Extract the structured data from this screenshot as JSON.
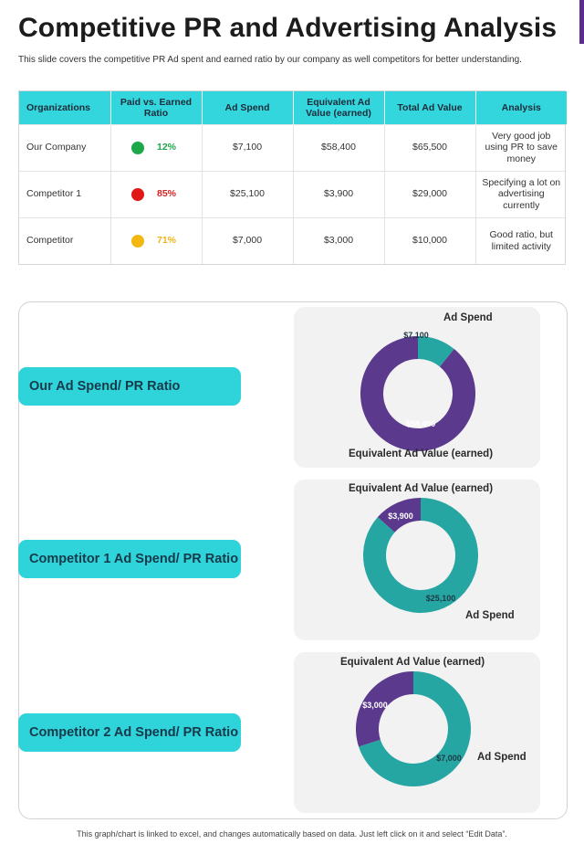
{
  "title": "Competitive PR and Advertising Analysis",
  "subtitle": "This slide covers the competitive PR Ad spent and earned ratio by our company as well competitors for better understanding.",
  "table": {
    "headers": [
      "Organizations",
      "Paid vs. Earned Ratio",
      "Ad Spend",
      "Equivalent Ad Value (earned)",
      "Total Ad Value",
      "Analysis"
    ],
    "rows": [
      {
        "org": "Our Company",
        "ratio": "12%",
        "status_color": "#1fa84a",
        "ratio_color": "#1fa84a",
        "ad_spend": "$7,100",
        "equivalent": "$58,400",
        "total": "$65,500",
        "analysis": "Very good job using PR to save money"
      },
      {
        "org": "Competitor 1",
        "ratio": "85%",
        "status_color": "#e01818",
        "ratio_color": "#d42020",
        "ad_spend": "$25,100",
        "equivalent": "$3,900",
        "total": "$29,000",
        "analysis": "Specifying a lot on advertising currently"
      },
      {
        "org": "Competitor",
        "ratio": "71%",
        "status_color": "#f3b712",
        "ratio_color": "#f0b41a",
        "ad_spend": "$7,000",
        "equivalent": "$3,000",
        "total": "$10,000",
        "analysis": "Good ratio, but limited activity"
      }
    ]
  },
  "sections": [
    {
      "label": "Our Ad Spend/ PR Ratio"
    },
    {
      "label": "Competitor 1 Ad Spend/ PR Ratio"
    },
    {
      "label": "Competitor 2 Ad Spend/ PR Ratio"
    }
  ],
  "colors": {
    "accent": "#2fd3da",
    "ad_spend": "#26a6a3",
    "equivalent": "#5b3a8e"
  },
  "chart_data": [
    {
      "type": "pie",
      "subtype": "donut",
      "labels": [
        "Ad Spend",
        "Equivalent Ad Value (earned)"
      ],
      "values": [
        7100,
        58400
      ],
      "data_labels": [
        "$7,100",
        "$58,400"
      ],
      "colors": [
        "#26a6a3",
        "#5b3a8e"
      ]
    },
    {
      "type": "pie",
      "subtype": "donut",
      "labels": [
        "Ad Spend",
        "Equivalent Ad Value (earned)"
      ],
      "values": [
        25100,
        3900
      ],
      "data_labels": [
        "$25,100",
        "$3,900"
      ],
      "colors": [
        "#26a6a3",
        "#5b3a8e"
      ]
    },
    {
      "type": "pie",
      "subtype": "donut",
      "labels": [
        "Ad Spend",
        "Equivalent Ad Value (earned)"
      ],
      "values": [
        7000,
        3000
      ],
      "data_labels": [
        "$7,000",
        "$3,000"
      ],
      "colors": [
        "#26a6a3",
        "#5b3a8e"
      ]
    }
  ],
  "footer": "This graph/chart is linked to excel, and changes automatically based on data. Just left click on it and select “Edit Data”."
}
